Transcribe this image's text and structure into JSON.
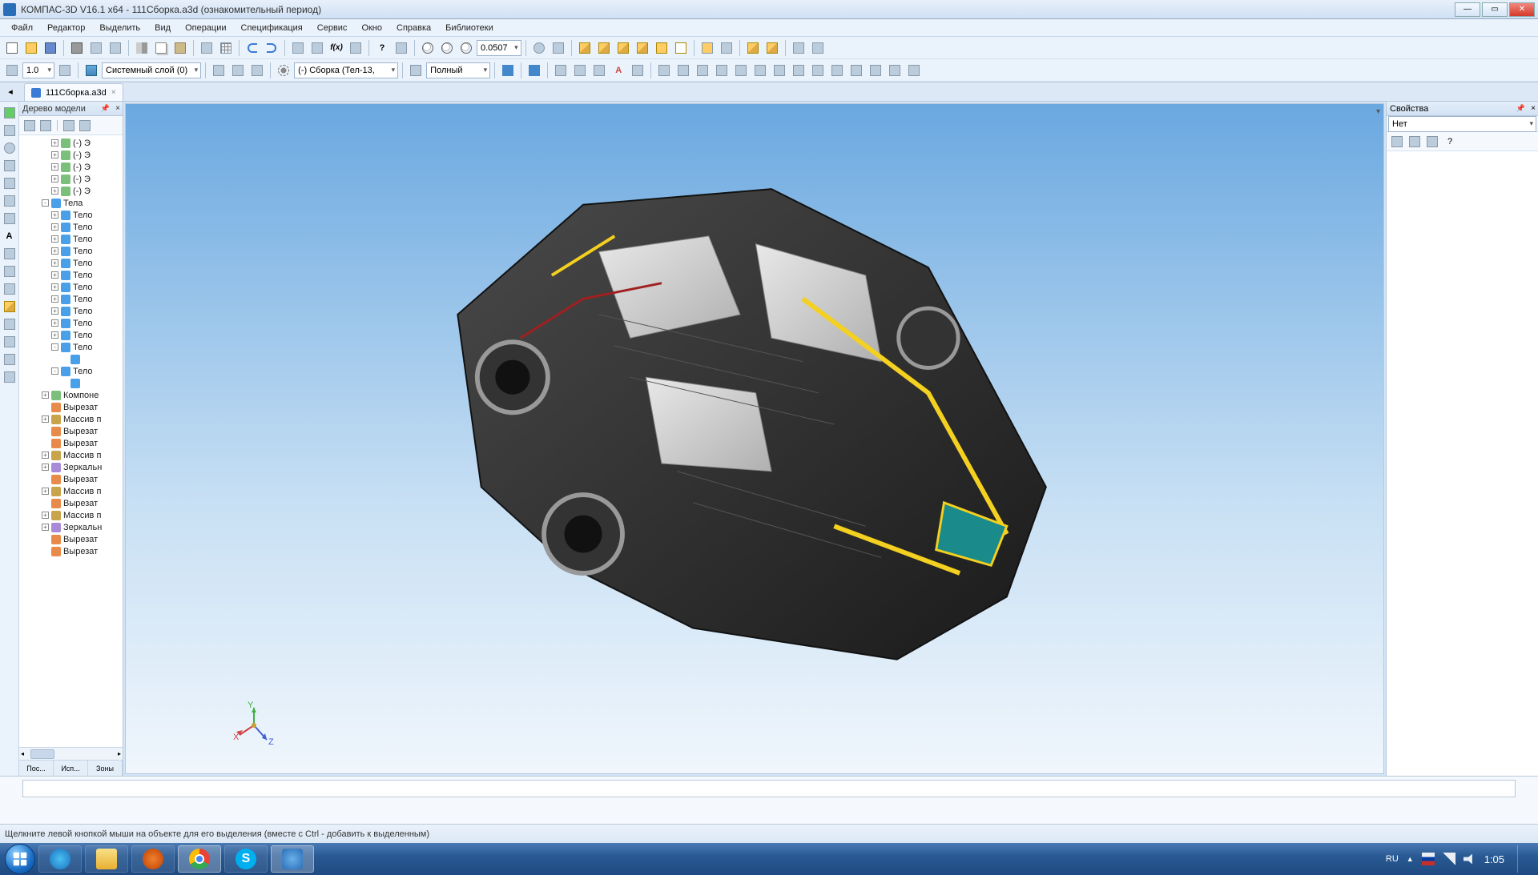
{
  "titlebar": {
    "title": "КОМПАС-3D V16.1 x64 - 111Сборка.a3d (ознакомительный период)"
  },
  "menu": [
    "Файл",
    "Редактор",
    "Выделить",
    "Вид",
    "Операции",
    "Спецификация",
    "Сервис",
    "Окно",
    "Справка",
    "Библиотеки"
  ],
  "toolbar": {
    "zoom_value": "0.0507",
    "scale_value": "1.0",
    "layer_text": "Системный слой (0)",
    "assembly_text": "(-) Сборка (Тел-13,",
    "display_mode": "Полный"
  },
  "doctab": {
    "label": "111Сборка.a3d"
  },
  "tree": {
    "header": "Дерево модели",
    "tabs": [
      "Пос...",
      "Исп...",
      "Зоны"
    ],
    "items": [
      {
        "indent": 3,
        "exp": "+",
        "ico": "feat",
        "label": "(-) Э"
      },
      {
        "indent": 3,
        "exp": "+",
        "ico": "feat",
        "label": "(-) Э"
      },
      {
        "indent": 3,
        "exp": "+",
        "ico": "feat",
        "label": "(-) Э"
      },
      {
        "indent": 3,
        "exp": "+",
        "ico": "feat",
        "label": "(-) Э"
      },
      {
        "indent": 3,
        "exp": "+",
        "ico": "feat",
        "label": "(-) Э"
      },
      {
        "indent": 2,
        "exp": "-",
        "ico": "body",
        "label": "Тела"
      },
      {
        "indent": 3,
        "exp": "+",
        "ico": "body",
        "label": "Тело"
      },
      {
        "indent": 3,
        "exp": "+",
        "ico": "body",
        "label": "Тело"
      },
      {
        "indent": 3,
        "exp": "+",
        "ico": "body",
        "label": "Тело"
      },
      {
        "indent": 3,
        "exp": "+",
        "ico": "body",
        "label": "Тело"
      },
      {
        "indent": 3,
        "exp": "+",
        "ico": "body",
        "label": "Тело"
      },
      {
        "indent": 3,
        "exp": "+",
        "ico": "body",
        "label": "Тело"
      },
      {
        "indent": 3,
        "exp": "+",
        "ico": "body",
        "label": "Тело"
      },
      {
        "indent": 3,
        "exp": "+",
        "ico": "body",
        "label": "Тело"
      },
      {
        "indent": 3,
        "exp": "+",
        "ico": "body",
        "label": "Тело"
      },
      {
        "indent": 3,
        "exp": "+",
        "ico": "body",
        "label": "Тело"
      },
      {
        "indent": 3,
        "exp": "+",
        "ico": "body",
        "label": "Тело"
      },
      {
        "indent": 3,
        "exp": "-",
        "ico": "body",
        "label": "Тело"
      },
      {
        "indent": 4,
        "exp": "",
        "ico": "body",
        "label": ""
      },
      {
        "indent": 3,
        "exp": "-",
        "ico": "body",
        "label": "Тело"
      },
      {
        "indent": 4,
        "exp": "",
        "ico": "body",
        "label": ""
      },
      {
        "indent": 2,
        "exp": "+",
        "ico": "feat",
        "label": "Компоне"
      },
      {
        "indent": 2,
        "exp": "",
        "ico": "cut",
        "label": "Вырезат"
      },
      {
        "indent": 2,
        "exp": "+",
        "ico": "arr",
        "label": "Массив п"
      },
      {
        "indent": 2,
        "exp": "",
        "ico": "cut",
        "label": "Вырезат"
      },
      {
        "indent": 2,
        "exp": "",
        "ico": "cut",
        "label": "Вырезат"
      },
      {
        "indent": 2,
        "exp": "+",
        "ico": "arr",
        "label": "Массив п"
      },
      {
        "indent": 2,
        "exp": "+",
        "ico": "mir",
        "label": "Зеркальн"
      },
      {
        "indent": 2,
        "exp": "",
        "ico": "cut",
        "label": "Вырезат"
      },
      {
        "indent": 2,
        "exp": "+",
        "ico": "arr",
        "label": "Массив п"
      },
      {
        "indent": 2,
        "exp": "",
        "ico": "cut",
        "label": "Вырезат"
      },
      {
        "indent": 2,
        "exp": "+",
        "ico": "arr",
        "label": "Массив п"
      },
      {
        "indent": 2,
        "exp": "+",
        "ico": "mir",
        "label": "Зеркальн"
      },
      {
        "indent": 2,
        "exp": "",
        "ico": "cut",
        "label": "Вырезат"
      },
      {
        "indent": 2,
        "exp": "",
        "ico": "cut",
        "label": "Вырезат"
      }
    ]
  },
  "triad": {
    "x": "X",
    "y": "Y",
    "z": "Z"
  },
  "props": {
    "header": "Свойства",
    "value": "Нет"
  },
  "status": {
    "text": "Щелкните левой кнопкой мыши на объекте для его выделения (вместе с Ctrl - добавить к выделенным)"
  },
  "taskbar": {
    "lang": "RU",
    "time": "1:05"
  },
  "colors": {
    "viewport_top": "#6aa8e0",
    "viewport_bottom": "#f0f6fc",
    "accent": "#3a7bd5",
    "model_dark": "#2a2a2a",
    "model_light": "#d8d8d8",
    "model_yellow": "#f4d020"
  }
}
